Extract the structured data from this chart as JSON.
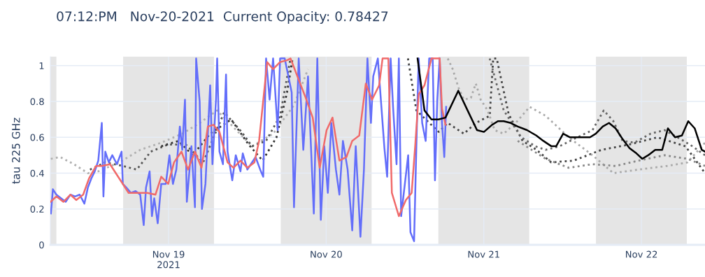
{
  "chart_data": {
    "type": "line",
    "title": "07:12:PM   Nov-20-2021  Current Opacity: 0.78427",
    "ylabel": "tau 225 GHz",
    "xlim": [
      "2021-11-18T06:00",
      "2021-11-22T09:41"
    ],
    "xticks": [
      {
        "value": "2021-11-19",
        "label": "Nov 19\n2021"
      },
      {
        "value": "2021-11-20",
        "label": "Nov 20"
      },
      {
        "value": "2021-11-21",
        "label": "Nov 21"
      },
      {
        "value": "2021-11-22",
        "label": "Nov 22"
      }
    ],
    "ylim": [
      0,
      1.05
    ],
    "yticks": [
      0,
      0.2,
      0.4,
      0.6,
      0.8,
      1
    ],
    "grid": true,
    "bands": [
      {
        "axis": "x",
        "from": "2021-11-18T06:00",
        "to": "2021-11-18T06:55",
        "color": "#e5e5e5"
      },
      {
        "axis": "x",
        "from": "2021-11-18T17:05",
        "to": "2021-11-19T06:55",
        "color": "#e5e5e5"
      },
      {
        "axis": "x",
        "from": "2021-11-19T17:05",
        "to": "2021-11-20T06:55",
        "color": "#e5e5e5"
      },
      {
        "axis": "x",
        "from": "2021-11-20T17:05",
        "to": "2021-11-21T06:55",
        "color": "#e5e5e5"
      },
      {
        "axis": "x",
        "from": "2021-11-21T17:05",
        "to": "2021-11-22T06:55",
        "color": "#e5e5e5"
      }
    ],
    "series": [
      {
        "type": "line",
        "line_style": "dotted",
        "color": "#b0b0b0",
        "x": [
          "2021-11-18T06:04",
          "2021-11-18T07:28",
          "2021-11-18T09:35",
          "2021-11-18T11:43",
          "2021-11-18T13:18",
          "2021-11-18T16:30",
          "2021-11-18T19:41",
          "2021-11-18T22:53",
          "2021-11-19T02:05",
          "2021-11-19T04:44",
          "2021-11-19T07:24",
          "2021-11-19T10:35",
          "2021-11-19T12:43",
          "2021-11-19T15:55",
          "2021-11-19T19:06",
          "2021-11-19T21:14"
        ],
        "values": [
          0.48,
          0.49,
          0.45,
          0.4,
          0.41,
          0.46,
          0.53,
          0.57,
          0.62,
          0.68,
          0.75,
          0.63,
          0.55,
          0.62,
          0.78,
          0.98
        ]
      },
      {
        "type": "line",
        "line_style": "dotted",
        "color": "#555555",
        "x": [
          "2021-11-18T12:02",
          "2021-11-18T14:22",
          "2021-11-18T17:02",
          "2021-11-18T19:10",
          "2021-11-18T21:17",
          "2021-11-18T23:57",
          "2021-11-19T02:37",
          "2021-11-19T05:16",
          "2021-11-19T08:28",
          "2021-11-19T11:07",
          "2021-11-19T12:43",
          "2021-11-19T14:51",
          "2021-11-19T16:59",
          "2021-11-19T18:34"
        ],
        "values": [
          0.42,
          0.46,
          0.44,
          0.42,
          0.52,
          0.56,
          0.56,
          0.46,
          0.74,
          0.63,
          0.55,
          0.58,
          0.72,
          1.04
        ]
      },
      {
        "type": "line",
        "line_style": "dotted",
        "color": "#333333",
        "x": [
          "2021-11-18T22:53",
          "2021-11-19T01:32",
          "2021-11-19T03:40",
          "2021-11-19T06:20",
          "2021-11-19T09:32",
          "2021-11-19T12:11",
          "2021-11-19T14:19",
          "2021-11-19T16:26",
          "2021-11-19T18:02",
          "2021-11-19T18:53"
        ],
        "values": [
          0.55,
          0.58,
          0.5,
          0.62,
          0.7,
          0.56,
          0.47,
          0.6,
          0.85,
          1.04
        ]
      },
      {
        "type": "line",
        "line_style": "dotted",
        "color": "#444444",
        "x": [
          "2021-11-20T12:27",
          "2021-11-20T13:44",
          "2021-11-20T17:08",
          "2021-11-20T18:31",
          "2021-11-20T20:58",
          "2021-11-20T22:47",
          "2021-11-21T00:54",
          "2021-11-21T01:26",
          "2021-11-21T01:58",
          "2021-11-21T03:47",
          "2021-11-21T05:55",
          "2021-11-21T08:02",
          "2021-11-21T10:16",
          "2021-11-21T13:41",
          "2021-11-21T17:56",
          "2021-11-21T22:11",
          "2021-11-22T02:27",
          "2021-11-22T06:43",
          "2021-11-22T09:41"
        ],
        "values": [
          1.04,
          0.75,
          0.63,
          0.68,
          0.62,
          0.68,
          0.72,
          1.04,
          1.04,
          0.73,
          0.58,
          0.53,
          0.46,
          0.47,
          0.53,
          0.56,
          0.6,
          0.55,
          0.4
        ]
      },
      {
        "type": "line",
        "line_style": "dotted",
        "color": "#aaaaaa",
        "x": [
          "2021-11-20T18:31",
          "2021-11-20T19:16",
          "2021-11-20T20:07",
          "2021-11-20T20:58",
          "2021-11-20T22:02",
          "2021-11-20T22:47",
          "2021-11-20T23:32",
          "2021-11-21T00:35",
          "2021-11-21T01:39",
          "2021-11-21T03:02",
          "2021-11-21T04:51",
          "2021-11-21T06:59",
          "2021-11-21T09:25",
          "2021-11-21T12:56",
          "2021-11-21T16:33",
          "2021-11-21T19:44",
          "2021-11-21T23:34",
          "2021-11-22T03:50",
          "2021-11-22T07:01",
          "2021-11-22T09:41"
        ],
        "values": [
          1.04,
          0.98,
          0.88,
          0.81,
          0.82,
          0.9,
          0.81,
          0.75,
          0.64,
          0.62,
          0.68,
          0.77,
          0.72,
          0.6,
          0.5,
          0.4,
          0.42,
          0.44,
          0.46,
          0.57
        ]
      },
      {
        "type": "line",
        "line_style": "dotted",
        "color": "#666666",
        "x": [
          "2021-11-21T00:54",
          "2021-11-21T03:02",
          "2021-11-21T05:42",
          "2021-11-21T07:50",
          "2021-11-21T09:25",
          "2021-11-21T11:33",
          "2021-11-21T13:41",
          "2021-11-21T16:33",
          "2021-11-21T18:16",
          "2021-11-21T19:44",
          "2021-11-21T21:08",
          "2021-11-21T22:56",
          "2021-11-22T01:23",
          "2021-11-22T03:31",
          "2021-11-22T05:58",
          "2021-11-22T07:46",
          "2021-11-22T09:41"
        ],
        "values": [
          1.04,
          0.75,
          0.6,
          0.55,
          0.53,
          0.55,
          0.59,
          0.64,
          0.75,
          0.69,
          0.58,
          0.57,
          0.62,
          0.64,
          0.59,
          0.55,
          0.5
        ]
      },
      {
        "type": "line",
        "line_style": "dotted",
        "color": "#888888",
        "x": [
          "2021-11-21T05:10",
          "2021-11-21T09:25",
          "2021-11-21T12:56",
          "2021-11-21T16:33",
          "2021-11-21T20:04",
          "2021-11-21T23:34",
          "2021-11-22T03:31",
          "2021-11-22T07:01",
          "2021-11-22T09:41"
        ],
        "values": [
          0.58,
          0.48,
          0.43,
          0.45,
          0.44,
          0.47,
          0.5,
          0.48,
          0.44
        ]
      },
      {
        "type": "line",
        "line_style": "solid",
        "color": "#636efa",
        "x": [
          "2021-11-18T06:05",
          "2021-11-18T06:23",
          "2021-11-18T06:55",
          "2021-11-18T07:38",
          "2021-11-18T08:20",
          "2021-11-18T09:03",
          "2021-11-18T09:46",
          "2021-11-18T10:28",
          "2021-11-18T11:11",
          "2021-11-18T11:43",
          "2021-11-18T12:14",
          "2021-11-18T12:46",
          "2021-11-18T13:18",
          "2021-11-18T13:50",
          "2021-11-18T14:05",
          "2021-11-18T14:22",
          "2021-11-18T14:54",
          "2021-11-18T15:26",
          "2021-11-18T16:08",
          "2021-11-18T16:51",
          "2021-11-18T17:02",
          "2021-11-18T17:34",
          "2021-11-18T18:16",
          "2021-11-18T18:59",
          "2021-11-18T19:41",
          "2021-11-18T20:13",
          "2021-11-18T20:34",
          "2021-11-18T21:07",
          "2021-11-18T21:28",
          "2021-11-18T21:49",
          "2021-11-18T22:21",
          "2021-11-18T22:53",
          "2021-11-18T23:35",
          "2021-11-19T00:08",
          "2021-11-19T00:40",
          "2021-11-19T01:11",
          "2021-11-19T01:43",
          "2021-11-19T02:05",
          "2021-11-19T02:30",
          "2021-11-19T02:47",
          "2021-11-19T03:29",
          "2021-11-19T04:01",
          "2021-11-19T04:12",
          "2021-11-19T04:44",
          "2021-11-19T05:05",
          "2021-11-19T05:37",
          "2021-11-19T06:20",
          "2021-11-19T06:41",
          "2021-11-19T07:13",
          "2021-11-19T07:24",
          "2021-11-19T07:45",
          "2021-11-19T08:17",
          "2021-11-19T08:45",
          "2021-11-19T08:59",
          "2021-11-19T09:42",
          "2021-11-19T10:14",
          "2021-11-19T10:57",
          "2021-11-19T11:18",
          "2021-11-19T12:00",
          "2021-11-19T12:32",
          "2021-11-19T13:15",
          "2021-11-19T13:57",
          "2021-11-19T14:25",
          "2021-11-19T14:51",
          "2021-11-19T15:23",
          "2021-11-19T15:55",
          "2021-11-19T16:37",
          "2021-11-19T16:59",
          "2021-11-19T17:41",
          "2021-11-19T18:45",
          "2021-11-19T19:06",
          "2021-11-19T19:49",
          "2021-11-19T20:31",
          "2021-11-19T21:14",
          "2021-11-19T22:07",
          "2021-11-19T22:39",
          "2021-11-19T23:11",
          "2021-11-19T23:43",
          "2021-11-20T00:15",
          "2021-11-20T00:47",
          "2021-11-20T01:29",
          "2021-11-20T02:01",
          "2021-11-20T02:33",
          "2021-11-20T03:16",
          "2021-11-20T03:58",
          "2021-11-20T04:30",
          "2021-11-20T05:13",
          "2021-11-20T05:45",
          "2021-11-20T06:17",
          "2021-11-20T06:49",
          "2021-11-20T07:10",
          "2021-11-20T07:52",
          "2021-11-20T08:52",
          "2021-11-20T09:17",
          "2021-11-20T09:49",
          "2021-11-20T10:11",
          "2021-11-20T10:43",
          "2021-11-20T11:04",
          "2021-11-20T11:25",
          "2021-11-20T12:29",
          "2021-11-20T12:50",
          "2021-11-20T13:23",
          "2021-11-20T13:44",
          "2021-11-20T14:05",
          "2021-11-20T14:37",
          "2021-11-20T15:09",
          "2021-11-20T15:41",
          "2021-11-20T16:13",
          "2021-11-20T16:34",
          "2021-11-20T16:55",
          "2021-11-20T17:17",
          "2021-11-20T17:38",
          "2021-11-20T17:59",
          "2021-11-20T18:16"
        ],
        "values": [
          0.175,
          0.31,
          0.28,
          0.26,
          0.24,
          0.28,
          0.27,
          0.28,
          0.23,
          0.32,
          0.37,
          0.41,
          0.47,
          0.68,
          0.27,
          0.52,
          0.46,
          0.5,
          0.45,
          0.52,
          0.34,
          0.32,
          0.29,
          0.3,
          0.28,
          0.11,
          0.32,
          0.41,
          0.16,
          0.26,
          0.12,
          0.34,
          0.34,
          0.5,
          0.34,
          0.42,
          0.66,
          0.53,
          0.81,
          0.24,
          0.55,
          0.21,
          1.04,
          0.8,
          0.2,
          0.34,
          0.89,
          0.45,
          0.81,
          1.04,
          0.52,
          0.45,
          0.95,
          0.52,
          0.36,
          0.5,
          0.41,
          0.51,
          0.42,
          0.45,
          0.49,
          0.42,
          0.38,
          1.04,
          0.81,
          1.04,
          0.64,
          1.04,
          1.04,
          0.85,
          0.21,
          1.04,
          0.53,
          0.94,
          0.175,
          1.04,
          0.14,
          0.55,
          0.29,
          0.68,
          0.42,
          0.28,
          0.58,
          0.42,
          0.08,
          0.55,
          0.045,
          0.42,
          1.04,
          0.68,
          0.94,
          1.04,
          0.54,
          0.38,
          1.04,
          0.77,
          0.45,
          1.04,
          0.16,
          0.5,
          0.07,
          0.02,
          0.55,
          1.04,
          0.68,
          0.58,
          1.04,
          1.04,
          0.36,
          0.81,
          1.04,
          0.68,
          0.49,
          0.77
        ]
      },
      {
        "type": "line",
        "line_style": "solid",
        "color": "#f06a6a",
        "x": [
          "2021-11-18T06:02",
          "2021-11-18T06:55",
          "2021-11-18T07:59",
          "2021-11-18T09:03",
          "2021-11-18T09:56",
          "2021-11-18T11:00",
          "2021-11-18T11:53",
          "2021-11-18T12:57",
          "2021-11-18T13:50",
          "2021-11-18T15:05",
          "2021-11-18T16:30",
          "2021-11-18T17:55",
          "2021-11-18T18:59",
          "2021-11-18T20:45",
          "2021-11-18T22:00",
          "2021-11-18T22:53",
          "2021-11-18T23:57",
          "2021-11-19T00:50",
          "2021-11-19T01:58",
          "2021-11-19T02:58",
          "2021-11-19T04:01",
          "2021-11-19T05:01",
          "2021-11-19T05:59",
          "2021-11-19T06:52",
          "2021-11-19T07:02",
          "2021-11-19T07:45",
          "2021-11-19T08:59",
          "2021-11-19T09:53",
          "2021-11-19T10:57",
          "2021-11-19T12:00",
          "2021-11-19T13:04",
          "2021-11-19T13:47",
          "2021-11-19T15:01",
          "2021-11-19T15:55",
          "2021-11-19T16:59",
          "2021-11-19T18:02",
          "2021-11-19T18:34",
          "2021-11-19T20:53",
          "2021-11-19T21:57",
          "2021-11-19T23:01",
          "2021-11-20T00:04",
          "2021-11-20T00:58",
          "2021-11-20T02:01",
          "2021-11-20T03:05",
          "2021-11-20T03:58",
          "2021-11-20T05:02",
          "2021-11-20T06:02",
          "2021-11-20T06:59",
          "2021-11-20T08:04",
          "2021-11-20T08:35",
          "2021-11-20T09:28",
          "2021-11-20T10:00",
          "2021-11-20T11:04",
          "2021-11-20T12:08",
          "2021-11-20T13:01",
          "2021-11-20T13:33",
          "2021-11-20T14:05",
          "2021-11-20T14:58",
          "2021-11-20T16:02",
          "2021-11-20T17:17",
          "2021-11-20T17:38",
          "2021-11-20T18:10"
        ],
        "values": [
          0.24,
          0.27,
          0.24,
          0.28,
          0.25,
          0.28,
          0.37,
          0.44,
          0.44,
          0.45,
          0.37,
          0.29,
          0.29,
          0.29,
          0.28,
          0.38,
          0.34,
          0.46,
          0.52,
          0.42,
          0.52,
          0.43,
          0.66,
          0.67,
          0.66,
          0.63,
          0.46,
          0.43,
          0.47,
          0.43,
          0.46,
          0.58,
          1.02,
          0.98,
          1.02,
          1.03,
          1.04,
          0.82,
          0.71,
          0.43,
          0.64,
          0.71,
          0.47,
          0.49,
          0.58,
          0.61,
          0.9,
          0.81,
          0.89,
          1.04,
          1.04,
          0.29,
          0.16,
          0.25,
          0.29,
          0.55,
          0.84,
          0.89,
          1.04,
          1.04,
          0.76,
          0.67
        ]
      },
      {
        "type": "line",
        "line_style": "solid",
        "color": "#000000",
        "x": [
          "2021-11-20T13:55",
          "2021-11-20T14:58",
          "2021-11-20T16:02",
          "2021-11-20T17:06",
          "2021-11-20T18:10",
          "2021-11-20T20:07",
          "2021-11-20T21:32",
          "2021-11-20T22:58",
          "2021-11-21T00:01",
          "2021-11-21T01:16",
          "2021-11-21T02:09",
          "2021-11-21T03:02",
          "2021-11-21T04:06",
          "2021-11-21T05:10",
          "2021-11-21T06:35",
          "2021-11-21T08:00",
          "2021-11-21T09:04",
          "2021-11-21T10:18",
          "2021-11-21T11:01",
          "2021-11-21T12:05",
          "2021-11-21T13:08",
          "2021-11-21T14:13",
          "2021-11-21T15:05",
          "2021-11-21T16:10",
          "2021-11-21T17:03",
          "2021-11-21T18:07",
          "2021-11-21T19:04",
          "2021-11-21T20:04",
          "2021-11-21T21:08",
          "2021-11-21T22:11",
          "2021-11-21T23:15",
          "2021-11-22T00:08",
          "2021-11-22T01:02",
          "2021-11-22T02:06",
          "2021-11-22T03:10",
          "2021-11-22T04:02",
          "2021-11-22T05:07",
          "2021-11-22T06:10",
          "2021-11-22T07:08",
          "2021-11-22T08:07",
          "2021-11-22T09:11",
          "2021-11-22T09:41"
        ],
        "values": [
          1.04,
          0.75,
          0.7,
          0.7,
          0.71,
          0.86,
          0.75,
          0.64,
          0.63,
          0.67,
          0.69,
          0.69,
          0.68,
          0.66,
          0.64,
          0.61,
          0.58,
          0.55,
          0.55,
          0.62,
          0.6,
          0.6,
          0.6,
          0.6,
          0.62,
          0.66,
          0.68,
          0.65,
          0.59,
          0.54,
          0.51,
          0.48,
          0.5,
          0.53,
          0.53,
          0.65,
          0.6,
          0.61,
          0.69,
          0.65,
          0.53,
          0.52
        ]
      }
    ]
  }
}
